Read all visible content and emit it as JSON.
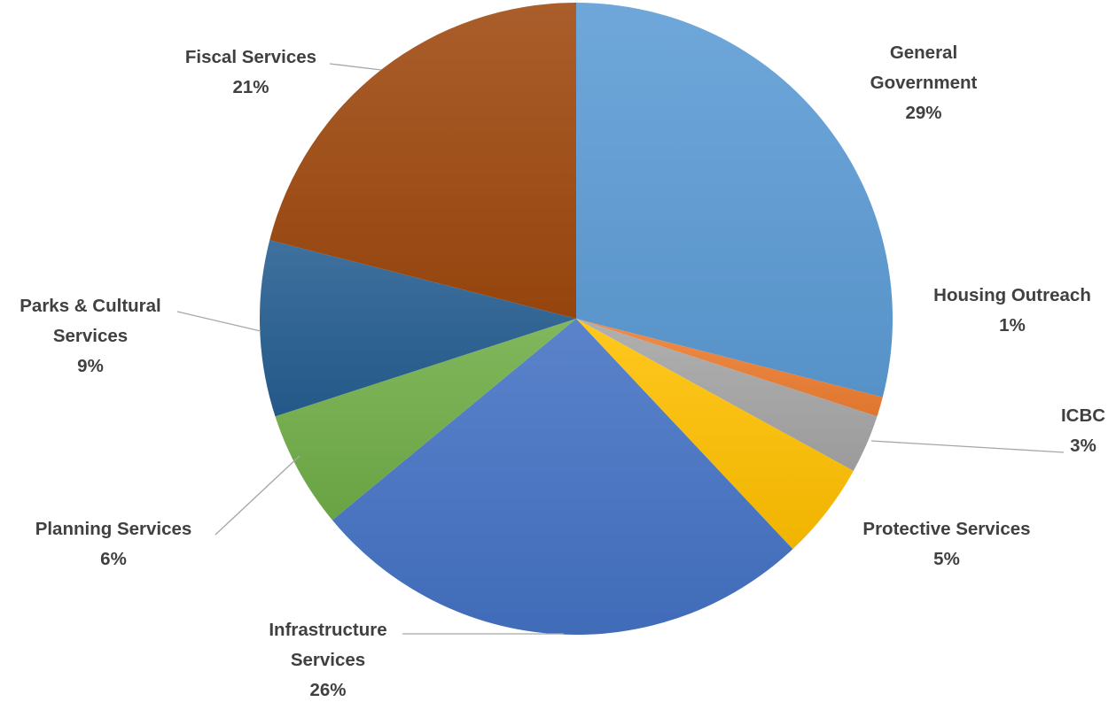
{
  "chart_data": {
    "type": "pie",
    "title": "",
    "legend": "none",
    "slices": [
      {
        "label_lines": [
          "General",
          "Government"
        ],
        "pct_label": "29%",
        "value": 29,
        "color": "#5b9bd5"
      },
      {
        "label_lines": [
          "Housing Outreach"
        ],
        "pct_label": "1%",
        "value": 1,
        "color": "#ed7d31"
      },
      {
        "label_lines": [
          "ICBC"
        ],
        "pct_label": "3%",
        "value": 3,
        "color": "#a5a5a5"
      },
      {
        "label_lines": [
          "Protective Services"
        ],
        "pct_label": "5%",
        "value": 5,
        "color": "#ffc000"
      },
      {
        "label_lines": [
          "Infrastructure",
          "Services"
        ],
        "pct_label": "26%",
        "value": 26,
        "color": "#4472c4"
      },
      {
        "label_lines": [
          "Planning Services"
        ],
        "pct_label": "6%",
        "value": 6,
        "color": "#70ad47"
      },
      {
        "label_lines": [
          "Parks & Cultural",
          "Services"
        ],
        "pct_label": "9%",
        "value": 9,
        "color": "#255e91"
      },
      {
        "label_lines": [
          "Fiscal Services"
        ],
        "pct_label": "21%",
        "value": 21,
        "color": "#9e480e"
      }
    ]
  }
}
